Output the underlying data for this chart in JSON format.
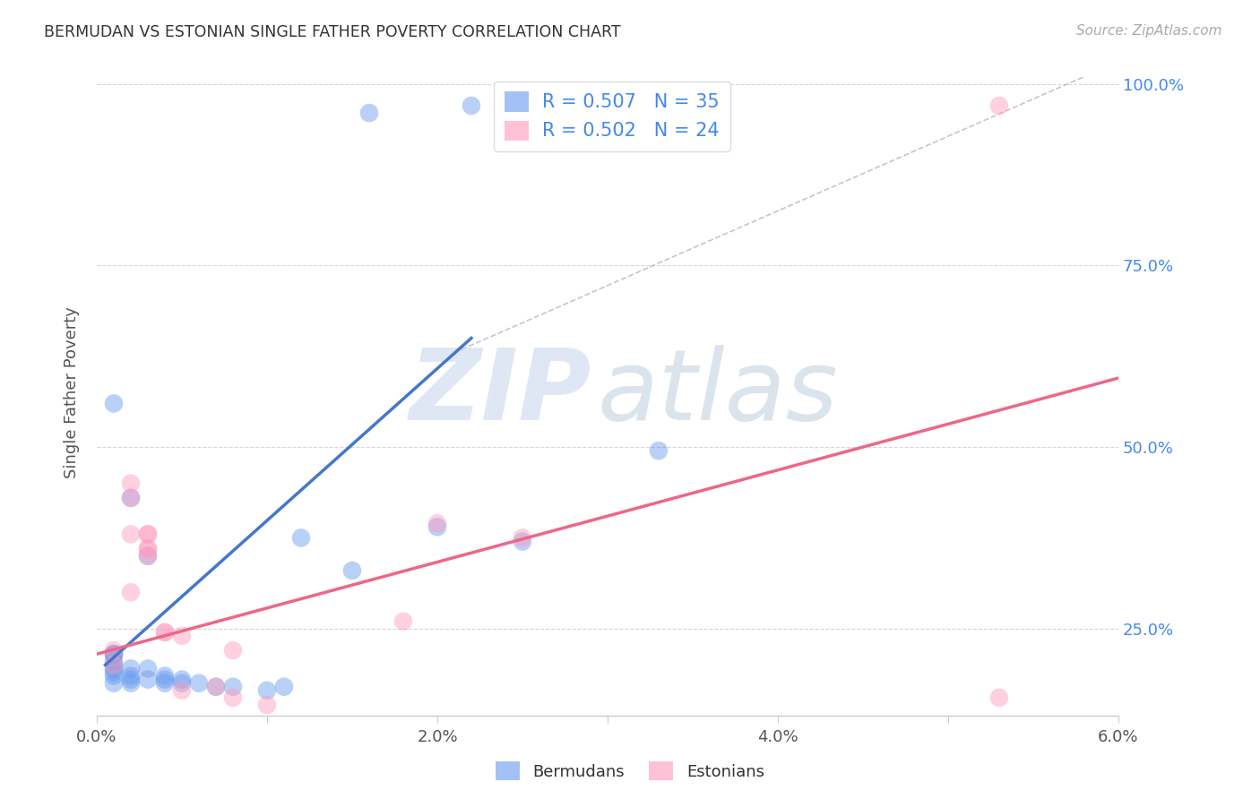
{
  "title": "BERMUDAN VS ESTONIAN SINGLE FATHER POVERTY CORRELATION CHART",
  "source": "Source: ZipAtlas.com",
  "ylabel": "Single Father Poverty",
  "xlim": [
    0.0,
    0.06
  ],
  "ylim": [
    0.13,
    1.02
  ],
  "xtick_vals": [
    0.0,
    0.01,
    0.02,
    0.03,
    0.04,
    0.05,
    0.06
  ],
  "xtick_labels": [
    "0.0%",
    "",
    "2.0%",
    "",
    "4.0%",
    "",
    "6.0%"
  ],
  "ytick_vals": [
    0.25,
    0.5,
    0.75,
    1.0
  ],
  "ytick_right_labels": [
    "25.0%",
    "50.0%",
    "75.0%",
    "100.0%"
  ],
  "blue_R": "R = 0.507",
  "blue_N": "N = 35",
  "pink_R": "R = 0.502",
  "pink_N": "N = 24",
  "blue_color": "#6699EE",
  "pink_color": "#FF99BB",
  "blue_line_color": "#4477CC",
  "pink_line_color": "#EE6688",
  "blue_scatter": [
    [
      0.001,
      0.205
    ],
    [
      0.001,
      0.215
    ],
    [
      0.001,
      0.215
    ],
    [
      0.001,
      0.215
    ],
    [
      0.001,
      0.2
    ],
    [
      0.001,
      0.195
    ],
    [
      0.001,
      0.19
    ],
    [
      0.001,
      0.185
    ],
    [
      0.001,
      0.175
    ],
    [
      0.002,
      0.195
    ],
    [
      0.002,
      0.185
    ],
    [
      0.002,
      0.18
    ],
    [
      0.002,
      0.175
    ],
    [
      0.003,
      0.18
    ],
    [
      0.003,
      0.195
    ],
    [
      0.004,
      0.185
    ],
    [
      0.004,
      0.18
    ],
    [
      0.004,
      0.175
    ],
    [
      0.005,
      0.175
    ],
    [
      0.005,
      0.18
    ],
    [
      0.006,
      0.175
    ],
    [
      0.007,
      0.17
    ],
    [
      0.008,
      0.17
    ],
    [
      0.01,
      0.165
    ],
    [
      0.011,
      0.17
    ],
    [
      0.012,
      0.375
    ],
    [
      0.015,
      0.33
    ],
    [
      0.02,
      0.39
    ],
    [
      0.025,
      0.37
    ],
    [
      0.033,
      0.495
    ],
    [
      0.016,
      0.96
    ],
    [
      0.022,
      0.97
    ],
    [
      0.003,
      0.35
    ],
    [
      0.001,
      0.56
    ],
    [
      0.002,
      0.43
    ]
  ],
  "pink_scatter": [
    [
      0.001,
      0.22
    ],
    [
      0.001,
      0.2
    ],
    [
      0.002,
      0.45
    ],
    [
      0.002,
      0.43
    ],
    [
      0.002,
      0.3
    ],
    [
      0.002,
      0.38
    ],
    [
      0.003,
      0.36
    ],
    [
      0.003,
      0.38
    ],
    [
      0.003,
      0.38
    ],
    [
      0.003,
      0.35
    ],
    [
      0.003,
      0.36
    ],
    [
      0.004,
      0.245
    ],
    [
      0.004,
      0.245
    ],
    [
      0.005,
      0.24
    ],
    [
      0.005,
      0.165
    ],
    [
      0.007,
      0.17
    ],
    [
      0.008,
      0.22
    ],
    [
      0.008,
      0.155
    ],
    [
      0.01,
      0.145
    ],
    [
      0.018,
      0.26
    ],
    [
      0.02,
      0.395
    ],
    [
      0.025,
      0.375
    ],
    [
      0.053,
      0.155
    ],
    [
      0.053,
      0.97
    ]
  ],
  "blue_line_pts": [
    [
      0.0005,
      0.2
    ],
    [
      0.022,
      0.65
    ]
  ],
  "pink_line_pts": [
    [
      0.0,
      0.215
    ],
    [
      0.06,
      0.595
    ]
  ],
  "diag_line_pts": [
    [
      0.021,
      0.63
    ],
    [
      0.058,
      1.01
    ]
  ],
  "background_color": "#ffffff",
  "grid_color": "#cccccc",
  "title_color": "#333333",
  "right_axis_color": "#4488EE",
  "watermark_zip_color": "#ccd8ee",
  "watermark_atlas_color": "#b0c4d8"
}
